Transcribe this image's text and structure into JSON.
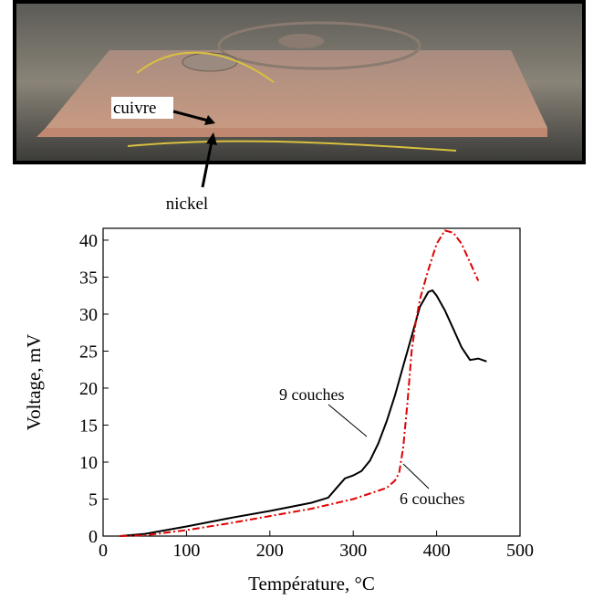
{
  "photo": {
    "labels": [
      "cuivre",
      "nickel"
    ]
  },
  "chart_data": {
    "type": "line",
    "xlabel": "Température, °C",
    "ylabel": "Voltage, mV",
    "xlim": [
      0,
      500
    ],
    "ylim": [
      0,
      41.6
    ],
    "xticks": [
      0,
      100,
      200,
      300,
      400,
      500
    ],
    "yticks": [
      0,
      5,
      10,
      15,
      20,
      25,
      30,
      35,
      40
    ],
    "series": [
      {
        "name": "9 couches",
        "color": "#000000",
        "dash": "solid",
        "x": [
          20,
          50,
          100,
          150,
          200,
          250,
          270,
          280,
          290,
          300,
          310,
          320,
          330,
          340,
          350,
          360,
          370,
          380,
          390,
          395,
          400,
          410,
          420,
          430,
          440,
          450,
          460
        ],
        "values": [
          0,
          0.3,
          1.3,
          2.4,
          3.4,
          4.5,
          5.2,
          6.5,
          7.8,
          8.2,
          8.8,
          10.2,
          12.5,
          15.5,
          19,
          23,
          27,
          31,
          33,
          33.2,
          32.5,
          30.5,
          28,
          25.5,
          23.8,
          24,
          23.6
        ]
      },
      {
        "name": "6 couches",
        "color": "#e00000",
        "dash": "dashdot",
        "x": [
          20,
          50,
          100,
          150,
          200,
          250,
          300,
          340,
          350,
          355,
          360,
          365,
          370,
          375,
          380,
          390,
          400,
          410,
          420,
          430,
          440,
          450
        ],
        "values": [
          0,
          0.1,
          0.8,
          1.7,
          2.7,
          3.7,
          5,
          6.5,
          7.5,
          8.5,
          12,
          18,
          25,
          29,
          32,
          36,
          39.5,
          41.3,
          41,
          39.5,
          37,
          34.5
        ]
      }
    ]
  }
}
